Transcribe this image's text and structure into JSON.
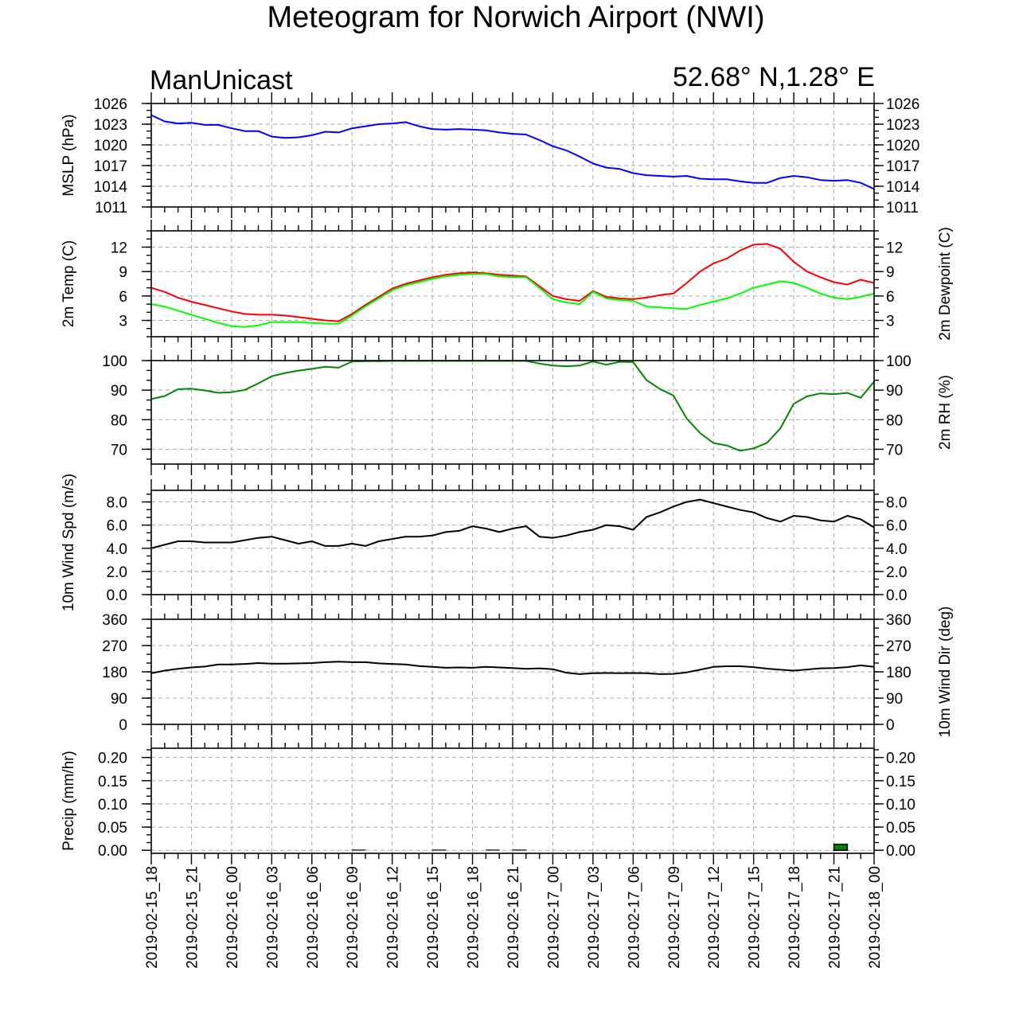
{
  "title": "Meteogram for Norwich Airport (NWI)",
  "model": "ManUnicast",
  "location": "52.68° N,1.28° E",
  "colors": {
    "mslp": "#0000ff",
    "temp": "#ff0000",
    "dewpoint": "#00ff00",
    "rh": "#008800",
    "wind": "#000000",
    "precip": "#008800"
  },
  "chart_data": {
    "type": "line",
    "x_tick_labels": [
      "2019-02-15_18",
      "2019-02-15_21",
      "2019-02-16_00",
      "2019-02-16_03",
      "2019-02-16_06",
      "2019-02-16_09",
      "2019-02-16_12",
      "2019-02-16_15",
      "2019-02-16_18",
      "2019-02-16_21",
      "2019-02-17_00",
      "2019-02-17_03",
      "2019-02-17_06",
      "2019-02-17_09",
      "2019-02-17_12",
      "2019-02-17_15",
      "2019-02-17_18",
      "2019-02-17_21",
      "2019-02-18_00"
    ],
    "hours": [
      0,
      1,
      2,
      3,
      4,
      5,
      6,
      7,
      8,
      9,
      10,
      11,
      12,
      13,
      14,
      15,
      16,
      17,
      18,
      19,
      20,
      21,
      22,
      23,
      24,
      25,
      26,
      27,
      28,
      29,
      30,
      31,
      32,
      33,
      34,
      35,
      36,
      37,
      38,
      39,
      40,
      41,
      42,
      43,
      44,
      45,
      46,
      47,
      48,
      49,
      50,
      51,
      52,
      53,
      54
    ],
    "panels": [
      {
        "id": "mslp",
        "ylabel_left": "MSLP (hPa)",
        "ylabel_right": "",
        "ylim": [
          1011,
          1026
        ],
        "yticks": [
          1011,
          1014,
          1017,
          1020,
          1023,
          1026
        ],
        "ytick_labels": [
          "1011",
          "1014",
          "1017",
          "1020",
          "1023",
          "1026"
        ],
        "series": [
          {
            "color": "#0000ff",
            "values": [
              1024.3,
              1023.4,
              1023.1,
              1023.2,
              1022.9,
              1022.9,
              1022.4,
              1022.0,
              1022.0,
              1021.2,
              1021.0,
              1021.1,
              1021.4,
              1021.9,
              1021.8,
              1022.4,
              1022.7,
              1023.0,
              1023.1,
              1023.3,
              1022.7,
              1022.3,
              1022.2,
              1022.3,
              1022.2,
              1022.1,
              1021.8,
              1021.6,
              1021.5,
              1020.7,
              1019.8,
              1019.2,
              1018.3,
              1017.3,
              1016.7,
              1016.5,
              1015.9,
              1015.6,
              1015.5,
              1015.4,
              1015.5,
              1015.1,
              1015.0,
              1015.0,
              1014.7,
              1014.5,
              1014.5,
              1015.2,
              1015.5,
              1015.3,
              1014.9,
              1014.8,
              1014.9,
              1014.5,
              1013.6
            ]
          }
        ]
      },
      {
        "id": "temp",
        "ylabel_left": "2m Temp (C)",
        "ylabel_right": "2m Dewpoint (C)",
        "ylim": [
          1,
          14
        ],
        "yticks": [
          3,
          6,
          9,
          12
        ],
        "ytick_labels": [
          "3",
          "6",
          "9",
          "12"
        ],
        "series": [
          {
            "color": "#ff0000",
            "values": [
              7.0,
              6.5,
              5.8,
              5.3,
              4.9,
              4.5,
              4.1,
              3.8,
              3.7,
              3.7,
              3.6,
              3.4,
              3.2,
              3.0,
              2.9,
              3.8,
              4.9,
              5.9,
              6.9,
              7.5,
              7.9,
              8.3,
              8.6,
              8.8,
              8.9,
              8.8,
              8.6,
              8.5,
              8.4,
              7.2,
              6.0,
              5.6,
              5.4,
              6.6,
              5.9,
              5.7,
              5.6,
              5.8,
              6.1,
              6.3,
              7.6,
              9.0,
              10.0,
              10.6,
              11.6,
              12.3,
              12.4,
              11.8,
              10.2,
              9.0,
              8.3,
              7.7,
              7.4,
              8.0,
              7.6
            ]
          },
          {
            "color": "#00ff00",
            "values": [
              5.0,
              4.7,
              4.2,
              3.7,
              3.2,
              2.7,
              2.3,
              2.2,
              2.4,
              2.8,
              2.8,
              2.8,
              2.7,
              2.6,
              2.6,
              3.6,
              4.7,
              5.7,
              6.7,
              7.3,
              7.7,
              8.1,
              8.4,
              8.6,
              8.7,
              8.7,
              8.4,
              8.3,
              8.3,
              7.0,
              5.6,
              5.2,
              5.0,
              6.5,
              5.7,
              5.5,
              5.4,
              4.7,
              4.6,
              4.5,
              4.4,
              4.9,
              5.3,
              5.7,
              6.3,
              7.0,
              7.4,
              7.8,
              7.6,
              7.0,
              6.3,
              5.8,
              5.6,
              5.9,
              6.3
            ]
          }
        ]
      },
      {
        "id": "rh",
        "ylabel_left": "",
        "ylabel_right": "2m RH (%)",
        "ylim": [
          65,
          100
        ],
        "yticks": [
          70,
          80,
          90,
          100
        ],
        "ytick_labels": [
          "70",
          "80",
          "90",
          "100"
        ],
        "series": [
          {
            "color": "#008800",
            "values": [
              87.0,
              88.0,
              90.3,
              90.5,
              89.9,
              89.1,
              89.3,
              90.1,
              92.3,
              94.7,
              95.8,
              96.6,
              97.2,
              97.9,
              97.6,
              99.7,
              99.8,
              99.8,
              99.9,
              99.9,
              99.9,
              99.9,
              99.9,
              99.9,
              99.9,
              99.9,
              99.9,
              99.9,
              99.9,
              99.0,
              98.3,
              98.1,
              98.3,
              99.7,
              98.6,
              99.6,
              99.5,
              93.4,
              90.4,
              88.2,
              80.4,
              75.5,
              72.1,
              71.3,
              69.5,
              70.3,
              72.2,
              77.1,
              85.4,
              87.9,
              88.9,
              88.6,
              89.1,
              87.4,
              92.9
            ]
          }
        ]
      },
      {
        "id": "windspd",
        "ylabel_left": "10m Wind Spd (m/s)",
        "ylabel_right": "",
        "ylim": [
          0,
          9
        ],
        "yticks": [
          0,
          2,
          4,
          6,
          8
        ],
        "ytick_labels": [
          "0.0",
          "2.0",
          "4.0",
          "6.0",
          "8.0"
        ],
        "series": [
          {
            "color": "#000000",
            "values": [
              4.0,
              4.3,
              4.6,
              4.6,
              4.5,
              4.5,
              4.5,
              4.7,
              4.9,
              5.0,
              4.7,
              4.4,
              4.6,
              4.2,
              4.2,
              4.4,
              4.2,
              4.6,
              4.8,
              5.0,
              5.0,
              5.1,
              5.4,
              5.5,
              5.9,
              5.7,
              5.4,
              5.7,
              5.9,
              5.0,
              4.9,
              5.1,
              5.4,
              5.6,
              6.0,
              5.9,
              5.6,
              6.7,
              7.1,
              7.6,
              8.0,
              8.2,
              7.9,
              7.6,
              7.3,
              7.1,
              6.6,
              6.3,
              6.8,
              6.7,
              6.4,
              6.3,
              6.8,
              6.5,
              5.8
            ]
          }
        ]
      },
      {
        "id": "winddir",
        "ylabel_left": "",
        "ylabel_right": "10m Wind Dir (deg)",
        "ylim": [
          0,
          360
        ],
        "yticks": [
          0,
          90,
          180,
          270,
          360
        ],
        "ytick_labels": [
          "0",
          "90",
          "180",
          "270",
          "360"
        ],
        "series": [
          {
            "color": "#000000",
            "values": [
              175,
              184,
              190,
              195,
              198,
              205,
              205,
              207,
              210,
              208,
              208,
              209,
              210,
              213,
              215,
              213,
              213,
              209,
              207,
              205,
              200,
              197,
              194,
              195,
              194,
              197,
              195,
              193,
              190,
              192,
              189,
              177,
              172,
              175,
              176,
              175,
              176,
              175,
              172,
              173,
              178,
              187,
              197,
              199,
              199,
              196,
              191,
              187,
              184,
              188,
              192,
              193,
              196,
              202,
              197
            ]
          }
        ]
      },
      {
        "id": "precip",
        "ylabel_left": "Precip (mm/hr)",
        "ylabel_right": "",
        "ylim": [
          -0.0065,
          0.22
        ],
        "yticks": [
          0.0,
          0.05,
          0.1,
          0.15,
          0.2
        ],
        "ytick_labels": [
          "0.00",
          "0.05",
          "0.10",
          "0.15",
          "0.20"
        ],
        "bars": [
          {
            "hour": 51.5,
            "value": 0.013,
            "color": "#008800"
          },
          {
            "hour": 15.5,
            "value": 0.001,
            "color": "#008800"
          },
          {
            "hour": 21.5,
            "value": 0.001,
            "color": "#008800"
          },
          {
            "hour": 25.5,
            "value": 0.001,
            "color": "#008800"
          },
          {
            "hour": 27.5,
            "value": 0.001,
            "color": "#008800"
          }
        ]
      }
    ]
  }
}
